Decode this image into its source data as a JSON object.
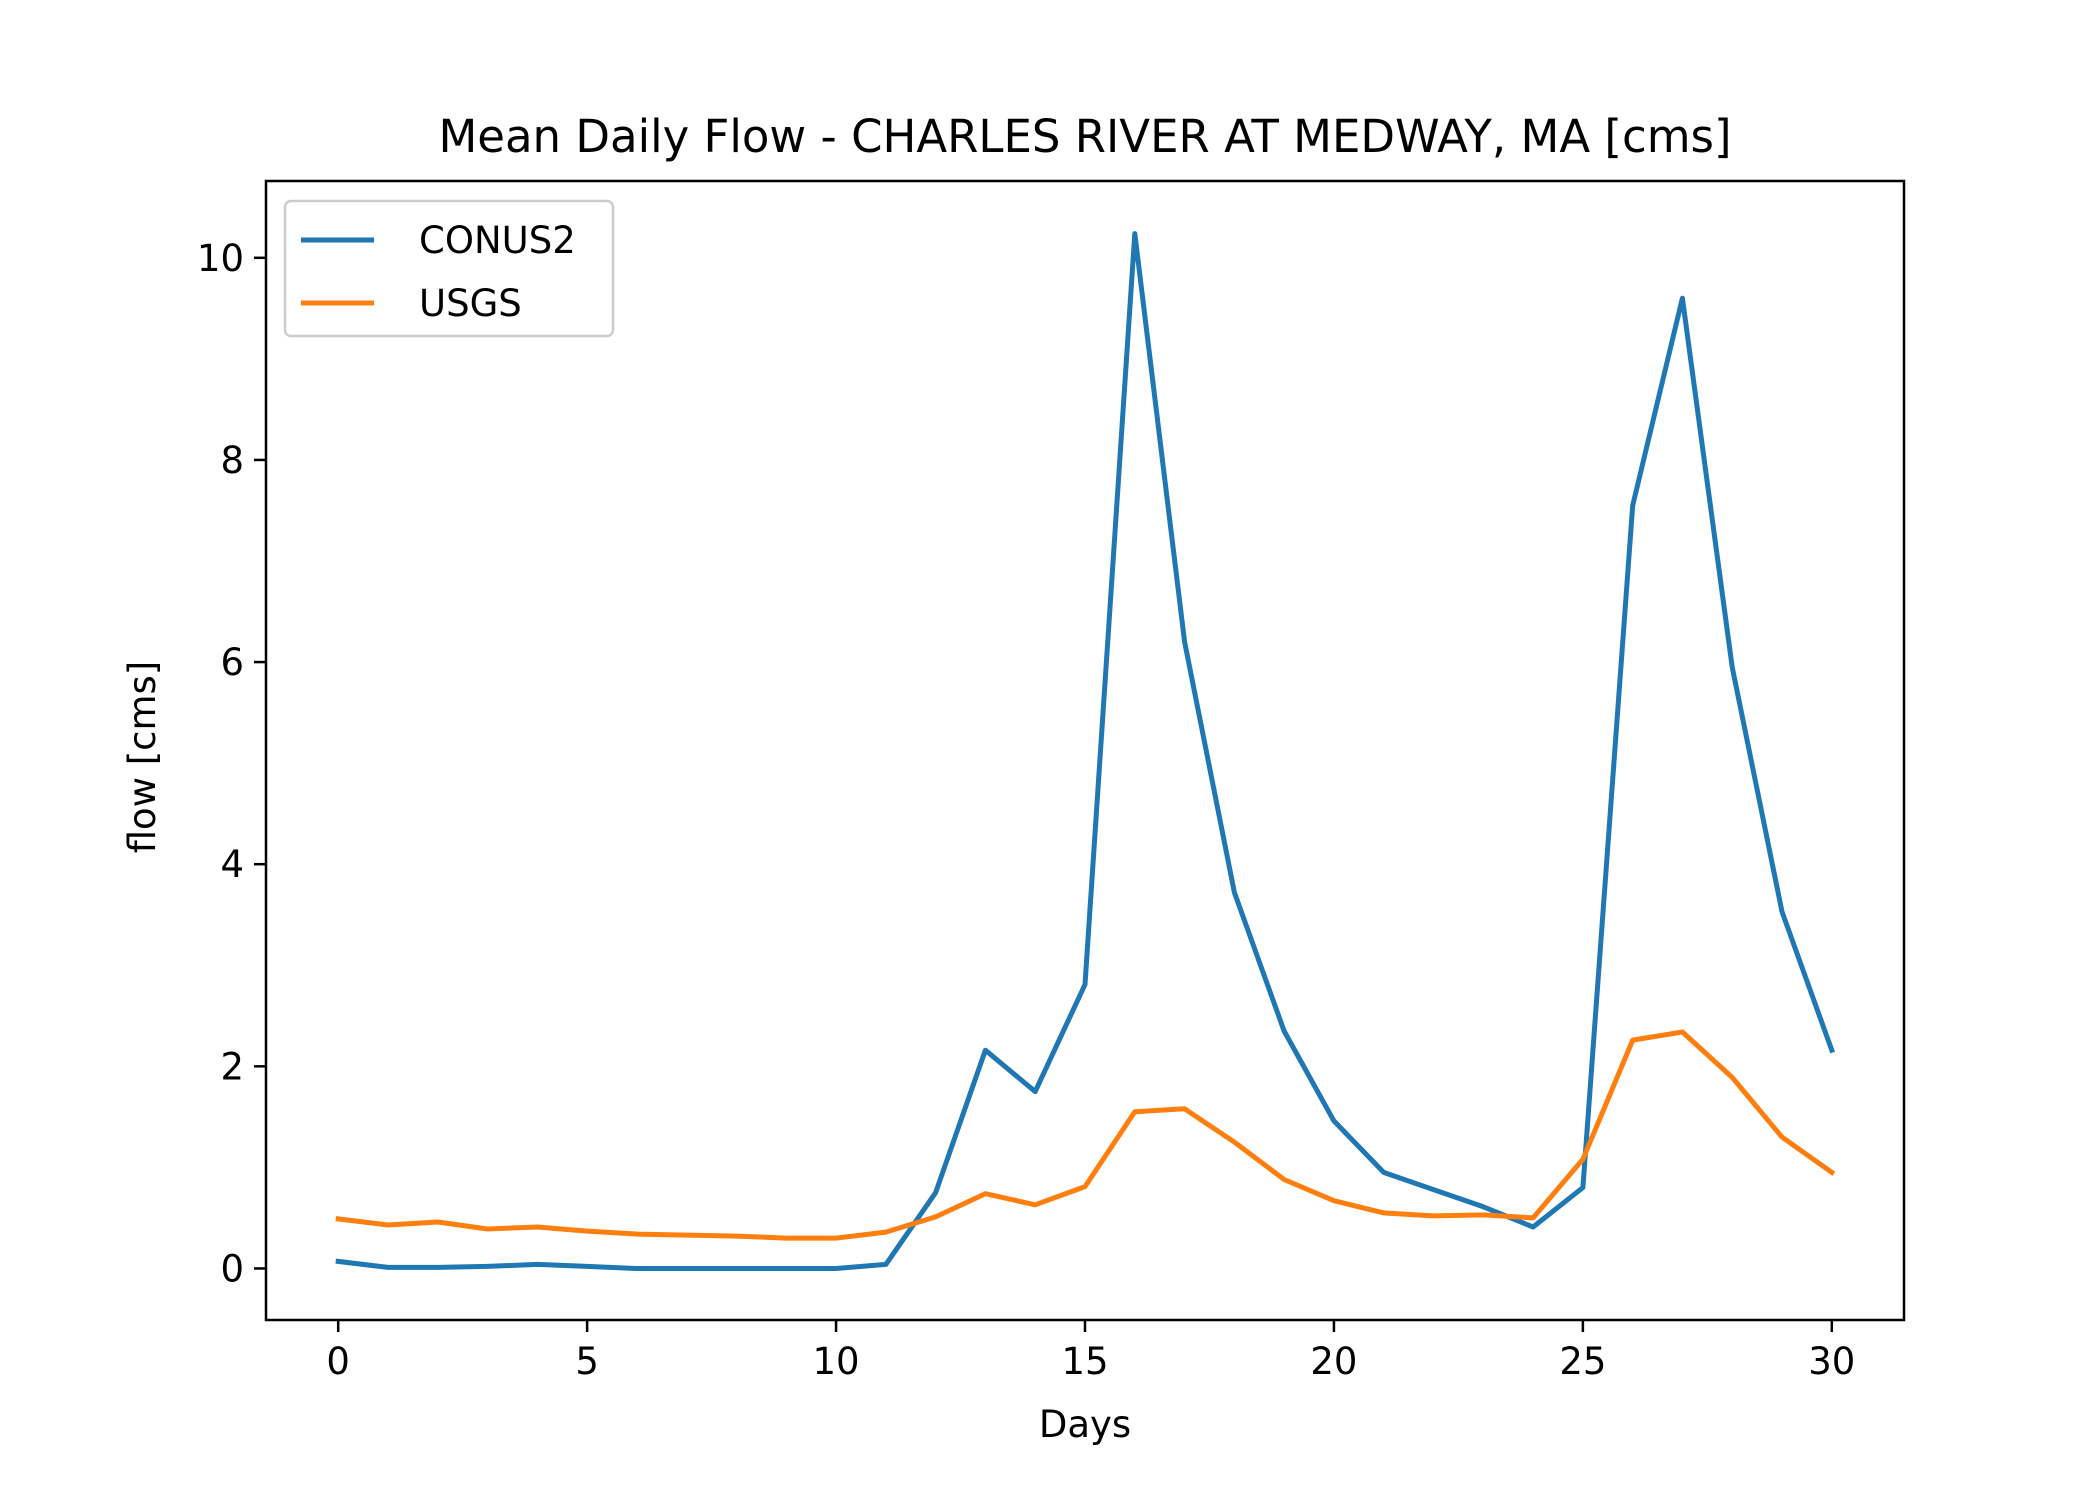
{
  "chart_data": {
    "type": "line",
    "title": "Mean Daily Flow - CHARLES RIVER AT MEDWAY, MA [cms]",
    "xlabel": "Days",
    "ylabel": "flow [cms]",
    "xlim": [
      -1.45,
      31.45
    ],
    "ylim": [
      -0.51,
      10.76
    ],
    "x_ticks": [
      0,
      5,
      10,
      15,
      20,
      25,
      30
    ],
    "y_ticks": [
      0,
      2,
      4,
      6,
      8,
      10
    ],
    "grid": false,
    "legend_position": "upper left",
    "x": [
      0,
      1,
      2,
      3,
      4,
      5,
      6,
      7,
      8,
      9,
      10,
      11,
      12,
      13,
      14,
      15,
      16,
      17,
      18,
      19,
      20,
      21,
      22,
      23,
      24,
      25,
      26,
      27,
      28,
      29,
      30
    ],
    "series": [
      {
        "name": "CONUS2",
        "color": "#1f77b4",
        "values": [
          0.07,
          0.01,
          0.01,
          0.02,
          0.04,
          0.02,
          0.0,
          0.0,
          0.0,
          0.0,
          0.0,
          0.04,
          0.75,
          2.16,
          1.75,
          2.81,
          10.24,
          6.2,
          3.72,
          2.35,
          1.46,
          0.95,
          0.78,
          0.61,
          0.41,
          0.8,
          7.55,
          9.6,
          5.95,
          3.53,
          2.16
        ]
      },
      {
        "name": "USGS",
        "color": "#ff7f0e",
        "values": [
          0.49,
          0.43,
          0.46,
          0.39,
          0.41,
          0.37,
          0.34,
          0.33,
          0.32,
          0.3,
          0.3,
          0.36,
          0.51,
          0.74,
          0.63,
          0.81,
          1.55,
          1.58,
          1.25,
          0.88,
          0.67,
          0.55,
          0.52,
          0.53,
          0.5,
          1.08,
          2.26,
          2.34,
          1.89,
          1.3,
          0.95
        ]
      }
    ]
  }
}
